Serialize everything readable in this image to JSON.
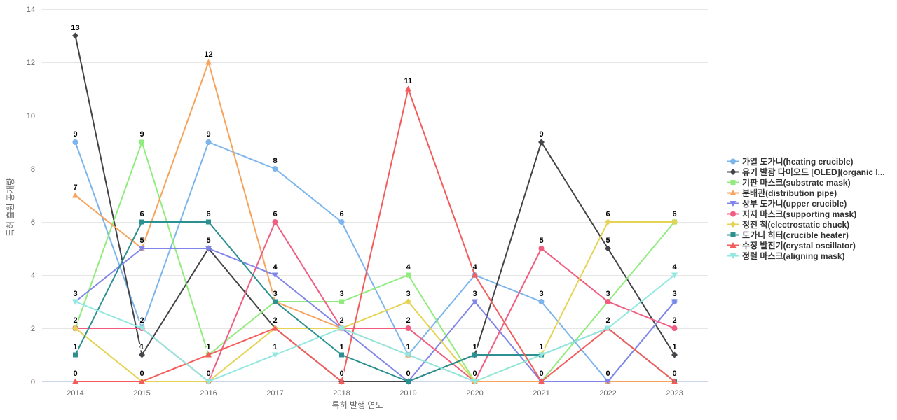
{
  "chart_data": {
    "type": "line",
    "title": "",
    "xlabel": "특허 발행 연도",
    "ylabel": "특허 출원 공개량",
    "categories": [
      "2014",
      "2015",
      "2016",
      "2017",
      "2018",
      "2019",
      "2020",
      "2021",
      "2022",
      "2023"
    ],
    "y_ticks": [
      0,
      2,
      4,
      6,
      8,
      10,
      12,
      14
    ],
    "ylim": [
      0,
      14
    ],
    "grid": true,
    "legend_position": "right",
    "grid_color": "#e6e6e6",
    "axis_line_color": "#ccd6eb",
    "tick_text_color": "#666666",
    "legend_text_color": "#333333",
    "series": [
      {
        "name": "가열 도가니(heating crucible)",
        "color": "#7cb5ec",
        "marker": "circle",
        "values": [
          9,
          2,
          9,
          8,
          6,
          1,
          4,
          3,
          0,
          3
        ]
      },
      {
        "name": "유기 발광 다이오드 [OLED](organic l...",
        "color": "#434348",
        "marker": "diamond",
        "values": [
          13,
          1,
          5,
          2,
          0,
          0,
          1,
          9,
          5,
          1
        ]
      },
      {
        "name": "기판 마스크(substrate mask)",
        "color": "#90ed7d",
        "marker": "square",
        "values": [
          2,
          9,
          1,
          3,
          3,
          4,
          0,
          0,
          3,
          6
        ]
      },
      {
        "name": "분배관(distribution pipe)",
        "color": "#f7a35c",
        "marker": "triangle",
        "values": [
          7,
          5,
          12,
          3,
          2,
          1,
          0,
          0,
          0,
          0
        ]
      },
      {
        "name": "상부 도가니(upper crucible)",
        "color": "#8085e9",
        "marker": "triangle-down",
        "values": [
          3,
          5,
          5,
          4,
          2,
          0,
          3,
          0,
          0,
          3
        ]
      },
      {
        "name": "지지 마스크(supporting mask)",
        "color": "#f15c80",
        "marker": "circle",
        "values": [
          2,
          2,
          0,
          6,
          2,
          2,
          0,
          5,
          3,
          2
        ]
      },
      {
        "name": "정전 척(electrostatic chuck)",
        "color": "#e4d354",
        "marker": "diamond",
        "values": [
          2,
          0,
          0,
          2,
          2,
          3,
          0,
          1,
          6,
          6
        ]
      },
      {
        "name": "도가니 히터(crucible heater)",
        "color": "#2b908f",
        "marker": "square",
        "values": [
          1,
          6,
          6,
          3,
          1,
          0,
          1,
          1,
          2,
          0
        ]
      },
      {
        "name": "수정 발진기(crystal oscillator)",
        "color": "#f45b5b",
        "marker": "triangle",
        "values": [
          0,
          0,
          1,
          2,
          0,
          11,
          4,
          0,
          2,
          0
        ]
      },
      {
        "name": "정렬 마스크(aligning mask)",
        "color": "#91e8e1",
        "marker": "triangle-down",
        "values": [
          3,
          2,
          0,
          1,
          2,
          1,
          0,
          1,
          2,
          4
        ]
      }
    ]
  }
}
